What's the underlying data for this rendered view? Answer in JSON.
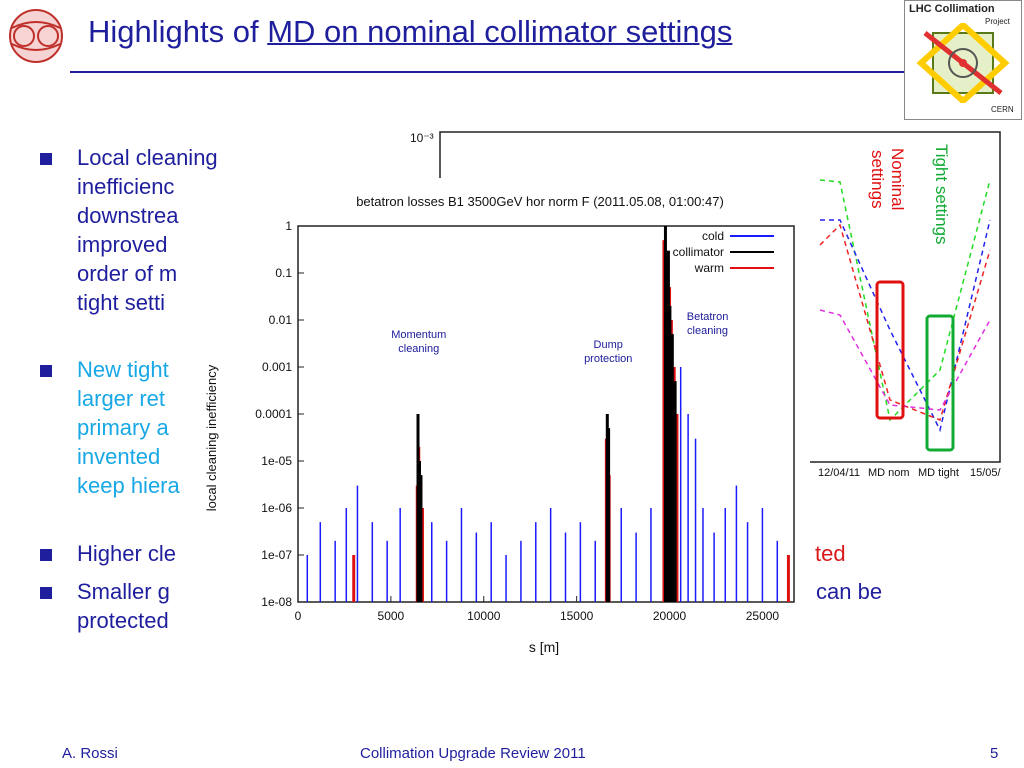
{
  "header": {
    "title_prefix": "Highlights of ",
    "title_emph": "MD on nominal collimator settings",
    "logo_right_text": "LHC Collimation",
    "logo_right_sub1": "Project",
    "logo_right_sub2": "CERN"
  },
  "bullets": [
    {
      "lines": [
        "Local cleaning",
        "inefficienc",
        "downstrea",
        "improved",
        "order of m",
        "tight setti"
      ]
    },
    {
      "lines": [
        "New tight",
        "larger ret",
        "primary a",
        "invented",
        "keep hiera"
      ]
    },
    {
      "lines": [
        "Higher cle"
      ],
      "suffix": "ted"
    },
    {
      "lines": [
        "Smaller g",
        "protected"
      ],
      "suffix": "can be"
    }
  ],
  "back_plot": {
    "y_top_label": "10⁻³",
    "x_ticks": [
      "12/04/11",
      "MD nom",
      "MD tight",
      "15/05/"
    ],
    "annot_nominal": [
      "Nominal",
      "settings"
    ],
    "annot_tight": "Tight settings"
  },
  "chart_data": {
    "type": "bar",
    "title": "betatron losses B1 3500GeV hor norm F (2011.05.08, 01:00:47)",
    "xlabel": "s [m]",
    "ylabel": "local cleaning inefficiency",
    "yscale": "log",
    "ylim": [
      1e-08,
      1
    ],
    "xlim": [
      0,
      26700
    ],
    "x_ticks": [
      0,
      5000,
      10000,
      15000,
      20000,
      25000
    ],
    "y_ticks": [
      "1",
      "0.1",
      "0.01",
      "0.001",
      "0.0001",
      "1e-05",
      "1e-06",
      "1e-07",
      "1e-08"
    ],
    "legend": [
      "cold",
      "collimator",
      "warm"
    ],
    "legend_position": "top-right",
    "colors": {
      "cold": "#1a1aff",
      "collimator": "#000000",
      "warm": "#e01010"
    },
    "annotations": [
      {
        "label": "Momentum cleaning",
        "x": 6500
      },
      {
        "label": "Dump protection",
        "x": 16700
      },
      {
        "label": "Betatron cleaning",
        "x": 20000
      }
    ],
    "series": [
      {
        "name": "collimator",
        "x": [
          6460,
          6540,
          6620,
          16650,
          16720,
          19780,
          19860,
          19940,
          20020,
          20150,
          20300
        ],
        "values": [
          0.0001,
          1e-05,
          5e-06,
          0.0001,
          5e-05,
          1,
          0.1,
          0.3,
          0.02,
          0.005,
          0.0005
        ]
      },
      {
        "name": "warm",
        "x": [
          6420,
          6500,
          6600,
          6700,
          16600,
          16750,
          19700,
          19800,
          19900,
          20000,
          20100,
          20250,
          20400,
          3000,
          26400
        ],
        "values": [
          3e-06,
          2e-05,
          5e-06,
          1e-06,
          3e-05,
          5e-06,
          0.5,
          0.1,
          0.2,
          0.05,
          0.01,
          0.001,
          0.0001,
          1e-07,
          1e-07
        ]
      },
      {
        "name": "cold",
        "x": [
          500,
          1200,
          2000,
          2600,
          3200,
          4000,
          4800,
          5500,
          7200,
          8000,
          8800,
          9600,
          10400,
          11200,
          12000,
          12800,
          13600,
          14400,
          15200,
          16000,
          17400,
          18200,
          19000,
          20600,
          21000,
          21400,
          21800,
          22400,
          23000,
          23600,
          24200,
          25000,
          25800
        ],
        "values": [
          1e-07,
          5e-07,
          2e-07,
          1e-06,
          3e-06,
          5e-07,
          2e-07,
          1e-06,
          5e-07,
          2e-07,
          1e-06,
          3e-07,
          5e-07,
          1e-07,
          2e-07,
          5e-07,
          1e-06,
          3e-07,
          5e-07,
          2e-07,
          1e-06,
          3e-07,
          1e-06,
          0.001,
          0.0001,
          3e-05,
          1e-06,
          3e-07,
          1e-06,
          3e-06,
          5e-07,
          1e-06,
          2e-07
        ]
      }
    ]
  },
  "footer": {
    "author": "A. Rossi",
    "center": "Collimation Upgrade Review 2011",
    "page": "5"
  }
}
